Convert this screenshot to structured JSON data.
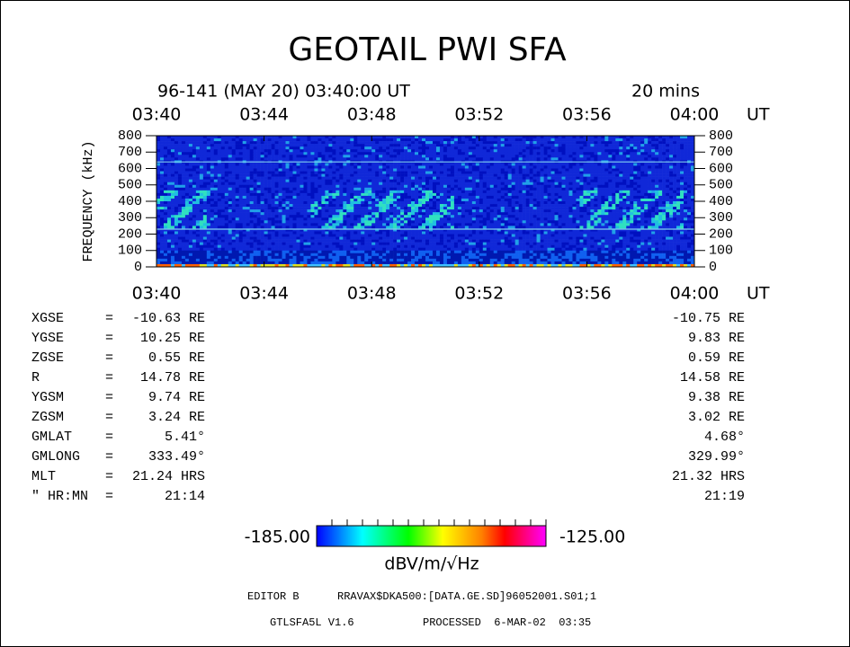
{
  "title": "GEOTAIL PWI SFA",
  "subtitle": {
    "date": "96-141 (MAY 20) 03:40:00 UT",
    "span": "20 mins"
  },
  "time_axis": {
    "labels": [
      "03:40",
      "03:44",
      "03:48",
      "03:52",
      "03:56",
      "04:00"
    ],
    "unit": "UT"
  },
  "frequency_axis": {
    "label": "FREQUENCY (kHz)",
    "ticks": [
      0,
      100,
      200,
      300,
      400,
      500,
      600,
      700,
      800
    ]
  },
  "orbit": {
    "rows": [
      {
        "name": "XGSE",
        "sep": "=",
        "start": "-10.63 RE",
        "end": "-10.75 RE"
      },
      {
        "name": "YGSE",
        "sep": "=",
        "start": "10.25 RE",
        "end": "9.83 RE"
      },
      {
        "name": "ZGSE",
        "sep": "=",
        "start": "0.55 RE",
        "end": "0.59 RE"
      },
      {
        "name": "R",
        "sep": "=",
        "start": "14.78 RE",
        "end": "14.58 RE"
      },
      {
        "name": "YGSM",
        "sep": "=",
        "start": "9.74 RE",
        "end": "9.38 RE"
      },
      {
        "name": "ZGSM",
        "sep": "=",
        "start": "3.24 RE",
        "end": "3.02 RE"
      },
      {
        "name": "GMLAT",
        "sep": "=",
        "start": "5.41°",
        "end": "4.68°"
      },
      {
        "name": "GMLONG",
        "sep": "=",
        "start": "333.49°",
        "end": "329.99°"
      },
      {
        "name": "MLT",
        "sep": "=",
        "start": "21.24 HRS",
        "end": "21.32 HRS"
      },
      {
        "name": "\" HR:MN",
        "sep": "=",
        "start": "21:14",
        "end": "21:19"
      }
    ]
  },
  "colorbar": {
    "min": "-185.00",
    "max": "-125.00",
    "unit": "dBV/m/√Hz"
  },
  "footer": {
    "editor": "EDITOR B",
    "file": "RRAVAX$DKA500:[DATA.GE.SD]96052001.S01;1",
    "version": "GTLSFA5L V1.6",
    "processed": "PROCESSED  6-MAR-02  03:35"
  }
}
